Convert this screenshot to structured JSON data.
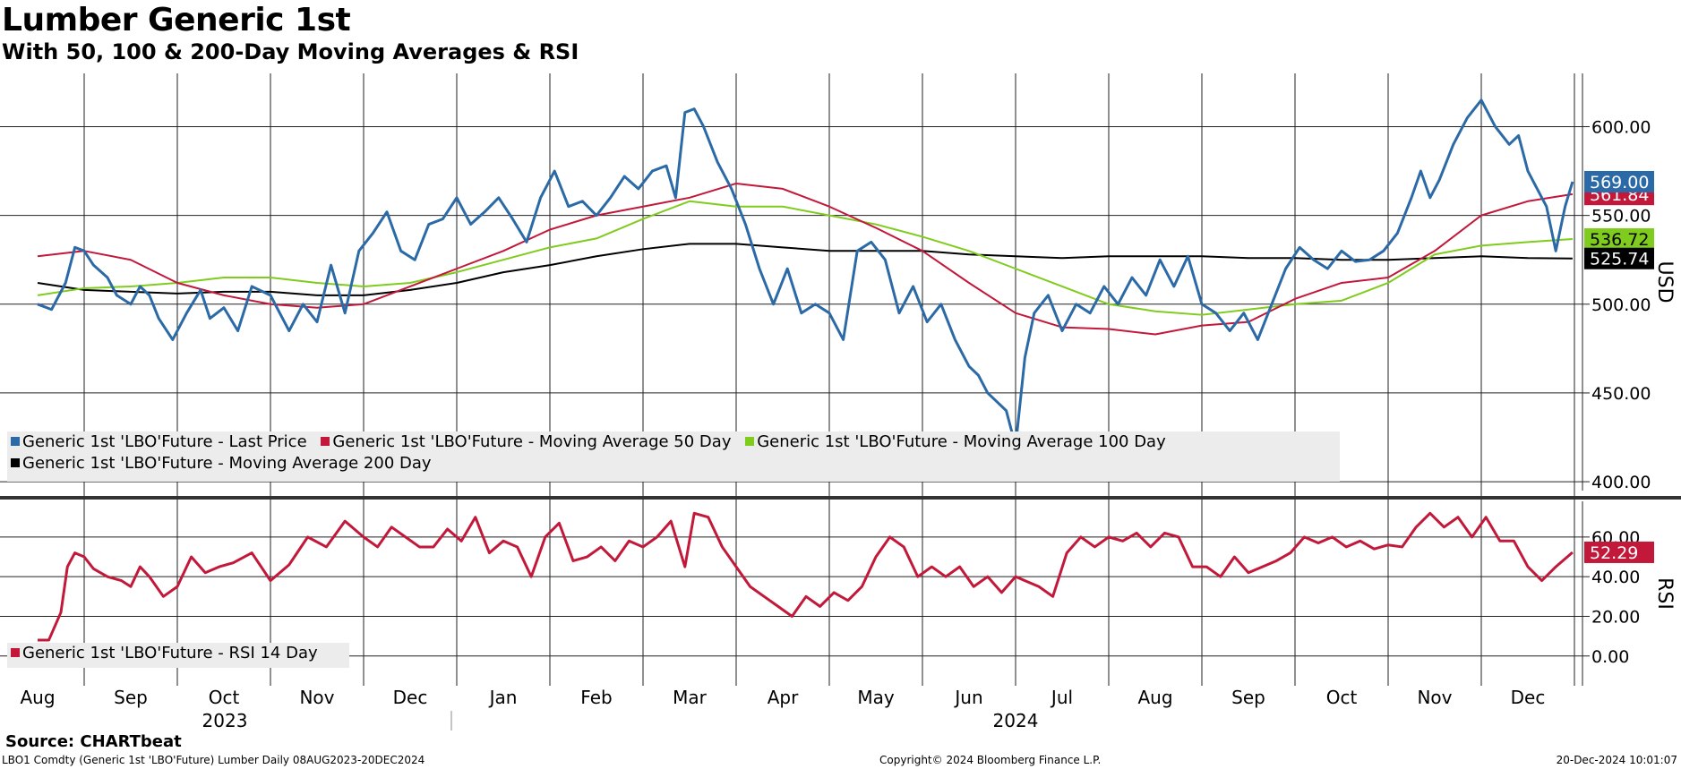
{
  "title": "Lumber Generic 1st",
  "subtitle": "With 50, 100 & 200-Day Moving Averages & RSI",
  "source": "Source: CHARTbeat",
  "footer_left": "LBO1 Comdty (Generic 1st 'LBO'Future) Lumber  Daily 08AUG2023-20DEC2024",
  "footer_center": "Copyright© 2024 Bloomberg Finance L.P.",
  "footer_right": "20-Dec-2024 10:01:07",
  "legend": {
    "last_price": "Generic 1st 'LBO'Future - Last Price",
    "ma50": "Generic 1st 'LBO'Future - Moving Average 50 Day",
    "ma100": "Generic 1st 'LBO'Future - Moving Average 100 Day",
    "ma200": "Generic 1st 'LBO'Future - Moving Average 200 Day",
    "rsi": "Generic 1st 'LBO'Future - RSI 14 Day"
  },
  "colors": {
    "last_price": "#2b6aa6",
    "ma50": "#c2183a",
    "ma100": "#7fcc1e",
    "ma200": "#000000",
    "rsi": "#c2183a"
  },
  "chart_data": [
    {
      "type": "line",
      "ylabel": "USD",
      "ylim": [
        395,
        630
      ],
      "yticks": [
        "400.00",
        "450.00",
        "500.00",
        "550.00",
        "600.00"
      ],
      "x_months": [
        "Aug",
        "Sep",
        "Oct",
        "Nov",
        "Dec",
        "Jan",
        "Feb",
        "Mar",
        "Apr",
        "May",
        "Jun",
        "Jul",
        "Aug",
        "Sep",
        "Oct",
        "Nov",
        "Dec"
      ],
      "x_years": [
        "2023",
        "2024"
      ],
      "x_range": [
        0,
        16.6
      ],
      "last_labels": {
        "last_price": "569.00",
        "ma50": "561.84",
        "ma100": "536.72",
        "ma200": "525.74"
      },
      "series": [
        {
          "name": "Generic 1st 'LBO'Future - Last Price",
          "key": "last_price",
          "x": [
            0,
            0.15,
            0.3,
            0.4,
            0.5,
            0.6,
            0.75,
            0.85,
            1.0,
            1.1,
            1.2,
            1.3,
            1.45,
            1.6,
            1.75,
            1.85,
            2.0,
            2.15,
            2.3,
            2.5,
            2.7,
            2.85,
            3.0,
            3.15,
            3.3,
            3.45,
            3.6,
            3.75,
            3.9,
            4.05,
            4.2,
            4.35,
            4.5,
            4.65,
            4.8,
            4.95,
            5.1,
            5.25,
            5.4,
            5.55,
            5.7,
            5.85,
            6.0,
            6.15,
            6.3,
            6.45,
            6.6,
            6.75,
            6.85,
            6.95,
            7.05,
            7.15,
            7.3,
            7.45,
            7.6,
            7.75,
            7.9,
            8.05,
            8.2,
            8.35,
            8.5,
            8.65,
            8.8,
            8.95,
            9.1,
            9.25,
            9.4,
            9.55,
            9.7,
            9.85,
            10.0,
            10.1,
            10.2,
            10.3,
            10.4,
            10.5,
            10.6,
            10.7,
            10.85,
            11.0,
            11.15,
            11.3,
            11.45,
            11.6,
            11.75,
            11.9,
            12.05,
            12.2,
            12.35,
            12.5,
            12.65,
            12.8,
            12.95,
            13.1,
            13.25,
            13.4,
            13.55,
            13.7,
            13.85,
            14.0,
            14.15,
            14.3,
            14.45,
            14.6,
            14.75,
            14.85,
            14.95,
            15.05,
            15.2,
            15.35,
            15.5,
            15.65,
            15.8,
            15.9,
            16.0,
            16.1,
            16.2,
            16.3,
            16.4,
            16.48
          ],
          "values": [
            500,
            497,
            512,
            532,
            530,
            522,
            515,
            505,
            500,
            510,
            505,
            492,
            480,
            495,
            508,
            492,
            498,
            485,
            510,
            505,
            485,
            500,
            490,
            522,
            495,
            530,
            540,
            552,
            530,
            525,
            545,
            548,
            560,
            545,
            552,
            560,
            548,
            535,
            560,
            575,
            555,
            558,
            550,
            560,
            572,
            565,
            575,
            578,
            560,
            608,
            610,
            600,
            580,
            565,
            545,
            520,
            500,
            520,
            495,
            500,
            495,
            480,
            530,
            535,
            525,
            495,
            510,
            490,
            500,
            480,
            465,
            460,
            450,
            445,
            440,
            420,
            470,
            495,
            505,
            485,
            500,
            495,
            510,
            500,
            515,
            505,
            525,
            510,
            527,
            500,
            495,
            485,
            495,
            480,
            500,
            520,
            532,
            525,
            520,
            530,
            524,
            525,
            530,
            540,
            560,
            575,
            560,
            570,
            590,
            605,
            615,
            600,
            590,
            595,
            575,
            565,
            555,
            530,
            555,
            569
          ]
        },
        {
          "name": "Generic 1st 'LBO'Future - Moving Average 50 Day",
          "key": "ma50",
          "x": [
            0,
            0.5,
            1.0,
            1.5,
            2.0,
            2.5,
            3.0,
            3.5,
            4.0,
            4.5,
            5.0,
            5.5,
            6.0,
            6.5,
            7.0,
            7.5,
            8.0,
            8.5,
            9.0,
            9.5,
            10.0,
            10.5,
            11.0,
            11.5,
            12.0,
            12.5,
            13.0,
            13.5,
            14.0,
            14.5,
            15.0,
            15.5,
            16.0,
            16.48
          ],
          "values": [
            527,
            530,
            525,
            512,
            505,
            500,
            498,
            500,
            510,
            520,
            530,
            542,
            550,
            555,
            560,
            568,
            565,
            555,
            543,
            530,
            512,
            495,
            487,
            486,
            483,
            488,
            490,
            503,
            512,
            515,
            530,
            550,
            558,
            562
          ]
        },
        {
          "name": "Generic 1st 'LBO'Future - Moving Average 100 Day",
          "key": "ma100",
          "x": [
            0,
            0.5,
            1.0,
            1.5,
            2.0,
            2.5,
            3.0,
            3.5,
            4.0,
            4.5,
            5.0,
            5.5,
            6.0,
            6.5,
            7.0,
            7.5,
            8.0,
            8.5,
            9.0,
            9.5,
            10.0,
            10.5,
            11.0,
            11.5,
            12.0,
            12.5,
            13.0,
            13.5,
            14.0,
            14.5,
            15.0,
            15.5,
            16.0,
            16.48
          ],
          "values": [
            505,
            509,
            510,
            512,
            515,
            515,
            512,
            510,
            512,
            518,
            525,
            532,
            537,
            548,
            558,
            555,
            555,
            550,
            545,
            538,
            530,
            520,
            510,
            500,
            496,
            494,
            497,
            500,
            502,
            512,
            528,
            533,
            535,
            536.72
          ]
        },
        {
          "name": "Generic 1st 'LBO'Future - Moving Average 200 Day",
          "key": "ma200",
          "x": [
            0,
            0.5,
            1.0,
            1.5,
            2.0,
            2.5,
            3.0,
            3.5,
            4.0,
            4.5,
            5.0,
            5.5,
            6.0,
            6.5,
            7.0,
            7.5,
            8.0,
            8.5,
            9.0,
            9.5,
            10.0,
            10.5,
            11.0,
            11.5,
            12.0,
            12.5,
            13.0,
            13.5,
            14.0,
            14.5,
            15.0,
            15.5,
            16.0,
            16.48
          ],
          "values": [
            512,
            508,
            507,
            506,
            507,
            507,
            505,
            505,
            508,
            512,
            518,
            522,
            527,
            531,
            534,
            534,
            532,
            530,
            530,
            530,
            528,
            527,
            526,
            527,
            527,
            527,
            526,
            526,
            525,
            525,
            526,
            527,
            526,
            525.74
          ]
        }
      ]
    },
    {
      "type": "line",
      "ylabel": "RSI",
      "ylim": [
        -15,
        78
      ],
      "yticks": [
        "0.00",
        "20.00",
        "40.00",
        "60.00"
      ],
      "last_labels": {
        "rsi": "52.29"
      },
      "series": [
        {
          "name": "Generic 1st 'LBO'Future - RSI 14 Day",
          "key": "rsi",
          "x": [
            0,
            0.12,
            0.25,
            0.32,
            0.4,
            0.5,
            0.6,
            0.75,
            0.9,
            1.0,
            1.1,
            1.2,
            1.35,
            1.5,
            1.65,
            1.8,
            1.95,
            2.1,
            2.3,
            2.5,
            2.7,
            2.9,
            3.1,
            3.3,
            3.5,
            3.65,
            3.8,
            3.95,
            4.1,
            4.25,
            4.4,
            4.55,
            4.7,
            4.85,
            5.0,
            5.15,
            5.3,
            5.45,
            5.6,
            5.75,
            5.9,
            6.05,
            6.2,
            6.35,
            6.5,
            6.65,
            6.8,
            6.95,
            7.05,
            7.2,
            7.35,
            7.5,
            7.65,
            7.8,
            7.95,
            8.1,
            8.25,
            8.4,
            8.55,
            8.7,
            8.85,
            9.0,
            9.15,
            9.3,
            9.45,
            9.6,
            9.75,
            9.9,
            10.05,
            10.2,
            10.35,
            10.5,
            10.6,
            10.75,
            10.9,
            11.05,
            11.2,
            11.35,
            11.5,
            11.65,
            11.8,
            11.95,
            12.1,
            12.25,
            12.4,
            12.55,
            12.7,
            12.85,
            13.0,
            13.15,
            13.3,
            13.45,
            13.6,
            13.75,
            13.9,
            14.05,
            14.2,
            14.35,
            14.5,
            14.65,
            14.8,
            14.95,
            15.1,
            15.25,
            15.4,
            15.55,
            15.7,
            15.85,
            16.0,
            16.15,
            16.3,
            16.48
          ],
          "values": [
            8,
            8,
            22,
            45,
            52,
            50,
            44,
            40,
            38,
            35,
            45,
            40,
            30,
            35,
            50,
            42,
            45,
            47,
            52,
            38,
            46,
            60,
            55,
            68,
            60,
            55,
            65,
            60,
            55,
            55,
            64,
            58,
            70,
            52,
            58,
            55,
            40,
            60,
            67,
            48,
            50,
            55,
            48,
            58,
            55,
            60,
            68,
            45,
            72,
            70,
            55,
            45,
            35,
            30,
            25,
            20,
            30,
            25,
            32,
            28,
            35,
            50,
            60,
            55,
            40,
            45,
            40,
            45,
            35,
            40,
            32,
            40,
            38,
            35,
            30,
            52,
            60,
            55,
            60,
            58,
            62,
            55,
            62,
            60,
            45,
            45,
            40,
            50,
            42,
            45,
            48,
            52,
            60,
            57,
            60,
            55,
            58,
            54,
            56,
            55,
            65,
            72,
            65,
            70,
            60,
            70,
            58,
            58,
            45,
            38,
            45,
            52.29
          ]
        }
      ]
    }
  ]
}
